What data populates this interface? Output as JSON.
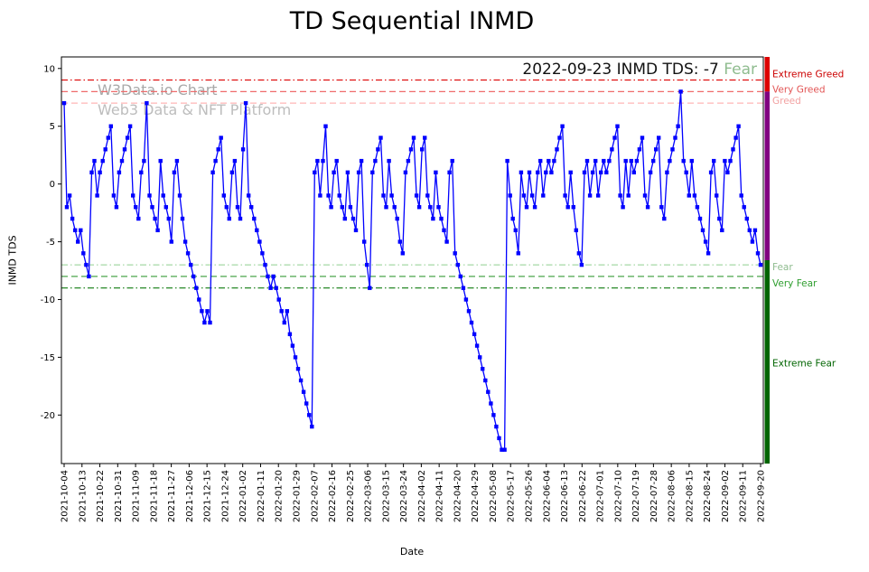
{
  "title": "TD Sequential INMD",
  "watermark": {
    "line1": "W3Data.io Chart",
    "line2": "Web3 Data & NFT Platform"
  },
  "annotation": {
    "text": "2022-09-23 INMD TDS: -7",
    "status": " Fear",
    "status_color": "#8fbc8f"
  },
  "axes": {
    "ylabel": "INMD TDS",
    "xlabel": "Date"
  },
  "chart_data": {
    "type": "line",
    "title": "TD Sequential INMD",
    "series_name": "INMD TDS",
    "line_color": "#0000ff",
    "marker": "square",
    "xlabel": "Date",
    "ylabel": "INMD TDS",
    "ylim": [
      -24.2,
      11
    ],
    "yticks": [
      10,
      5,
      0,
      -5,
      -10,
      -15,
      -20
    ],
    "xtick_labels": [
      "2021-10-04",
      "2021-10-13",
      "2021-10-22",
      "2021-10-31",
      "2021-11-09",
      "2021-11-18",
      "2021-11-27",
      "2021-12-06",
      "2021-12-15",
      "2021-12-24",
      "2022-01-02",
      "2022-01-11",
      "2022-01-20",
      "2022-01-29",
      "2022-02-07",
      "2022-02-16",
      "2022-02-25",
      "2022-03-06",
      "2022-03-15",
      "2022-03-24",
      "2022-04-02",
      "2022-04-11",
      "2022-04-20",
      "2022-04-29",
      "2022-05-08",
      "2022-05-17",
      "2022-05-26",
      "2022-06-04",
      "2022-06-13",
      "2022-06-22",
      "2022-07-01",
      "2022-07-10",
      "2022-07-19",
      "2022-07-28",
      "2022-08-06",
      "2022-08-15",
      "2022-08-24",
      "2022-09-02",
      "2022-09-11",
      "2022-09-20"
    ],
    "values": [
      7,
      -2,
      -1,
      -3,
      -4,
      -5,
      -4,
      -6,
      -7,
      -8,
      1,
      2,
      -1,
      1,
      2,
      3,
      4,
      5,
      -1,
      -2,
      1,
      2,
      3,
      4,
      5,
      -1,
      -2,
      -3,
      1,
      2,
      7,
      -1,
      -2,
      -3,
      -4,
      2,
      -1,
      -2,
      -3,
      -5,
      1,
      2,
      -1,
      -3,
      -5,
      -6,
      -7,
      -8,
      -9,
      -10,
      -11,
      -12,
      -11,
      -12,
      1,
      2,
      3,
      4,
      -1,
      -2,
      -3,
      1,
      2,
      -2,
      -3,
      3,
      7,
      -1,
      -2,
      -3,
      -4,
      -5,
      -6,
      -7,
      -8,
      -9,
      -8,
      -9,
      -10,
      -11,
      -12,
      -11,
      -13,
      -14,
      -15,
      -16,
      -17,
      -18,
      -19,
      -20,
      -21,
      1,
      2,
      -1,
      2,
      5,
      -1,
      -2,
      1,
      2,
      -1,
      -2,
      -3,
      1,
      -2,
      -3,
      -4,
      1,
      2,
      -5,
      -7,
      -9,
      1,
      2,
      3,
      4,
      -1,
      -2,
      2,
      -1,
      -2,
      -3,
      -5,
      -6,
      1,
      2,
      3,
      4,
      -1,
      -2,
      3,
      4,
      -1,
      -2,
      -3,
      1,
      -2,
      -3,
      -4,
      -5,
      1,
      2,
      -6,
      -7,
      -8,
      -9,
      -10,
      -11,
      -12,
      -13,
      -14,
      -15,
      -16,
      -17,
      -18,
      -19,
      -20,
      -21,
      -22,
      -23,
      -23,
      2,
      -1,
      -3,
      -4,
      -6,
      1,
      -1,
      -2,
      1,
      -1,
      -2,
      1,
      2,
      -1,
      1,
      2,
      1,
      2,
      3,
      4,
      5,
      -1,
      -2,
      1,
      -2,
      -4,
      -6,
      -7,
      1,
      2,
      -1,
      1,
      2,
      -1,
      1,
      2,
      1,
      2,
      3,
      4,
      5,
      -1,
      -2,
      2,
      -1,
      2,
      1,
      2,
      3,
      4,
      -1,
      -2,
      1,
      2,
      3,
      4,
      -2,
      -3,
      1,
      2,
      3,
      4,
      5,
      8,
      2,
      1,
      -1,
      2,
      -1,
      -2,
      -3,
      -4,
      -5,
      -6,
      1,
      2,
      -1,
      -3,
      -4,
      2,
      1,
      2,
      3,
      4,
      5,
      -1,
      -2,
      -3,
      -4,
      -5,
      -4,
      -6,
      -7
    ],
    "thresholds": [
      {
        "value": 9,
        "color": "#dd0000",
        "style": "dashdot"
      },
      {
        "value": 8,
        "color": "#ef6b6b",
        "style": "dashed"
      },
      {
        "value": 7,
        "color": "#ffb6b6",
        "style": "dashed"
      },
      {
        "value": -7,
        "color": "#a6d8a6",
        "style": "dashdot"
      },
      {
        "value": -8,
        "color": "#4ca64c",
        "style": "dashed"
      },
      {
        "value": -9,
        "color": "#0e7a0e",
        "style": "dashdot"
      }
    ],
    "zone_labels": [
      {
        "text": "Extreme Greed",
        "color": "#cc0000",
        "y": 9.5
      },
      {
        "text": "Very Greed",
        "color": "#e25555",
        "y": 8.2
      },
      {
        "text": "Greed",
        "color": "#f2a1a1",
        "y": 7.2
      },
      {
        "text": "Fear",
        "color": "#8fbc8f",
        "y": -7.2
      },
      {
        "text": "Very Fear",
        "color": "#2f9e2f",
        "y": -8.6
      },
      {
        "text": "Extreme Fear",
        "color": "#006400",
        "y": -15.5
      }
    ],
    "zones_bar": [
      {
        "color": "#dd0000",
        "from": 11,
        "to": 8
      },
      {
        "color": "#800080",
        "from": 8,
        "to": -6.6
      },
      {
        "color": "#006400",
        "from": -6.6,
        "to": -24.2
      }
    ],
    "last_point": {
      "date": "2022-09-23",
      "value": -7,
      "sentiment": "Fear"
    }
  }
}
